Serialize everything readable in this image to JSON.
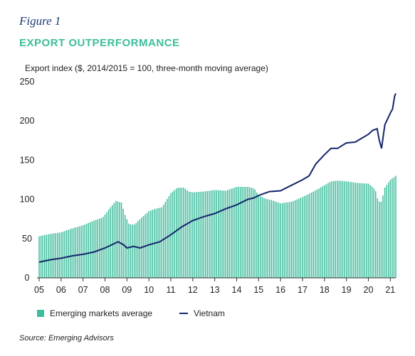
{
  "figure_label": "Figure 1",
  "title": "EXPORT OUTPERFORMANCE",
  "source": "Source: Emerging Advisors",
  "colors": {
    "bars": "#3dbd9c",
    "line": "#15266b",
    "title": "#3dbd9c",
    "figure_label": "#1e3a78"
  },
  "chart_data": {
    "type": "bar+line",
    "ylabel": "Export index ($, 2014/2015 = 100, three-month moving average)",
    "ylim": [
      0,
      250
    ],
    "yticks": [
      0,
      50,
      100,
      150,
      200,
      250
    ],
    "xlim": [
      2005,
      2021.25
    ],
    "xticks": [
      "05",
      "06",
      "07",
      "08",
      "09",
      "10",
      "11",
      "12",
      "13",
      "14",
      "15",
      "16",
      "17",
      "18",
      "19",
      "20",
      "21"
    ],
    "grid": false,
    "legend_position": "bottom",
    "series": [
      {
        "name": "Emerging markets average",
        "kind": "bar",
        "points": [
          [
            2005,
            53
          ],
          [
            2005.5,
            56
          ],
          [
            2006,
            58
          ],
          [
            2006.5,
            63
          ],
          [
            2007,
            67
          ],
          [
            2007.5,
            73
          ],
          [
            2007.9,
            77
          ],
          [
            2008.25,
            90
          ],
          [
            2008.5,
            98
          ],
          [
            2008.75,
            96
          ],
          [
            2008.92,
            80
          ],
          [
            2009.1,
            68
          ],
          [
            2009.35,
            68
          ],
          [
            2009.6,
            75
          ],
          [
            2010,
            85
          ],
          [
            2010.3,
            88
          ],
          [
            2010.6,
            90
          ],
          [
            2011,
            108
          ],
          [
            2011.3,
            115
          ],
          [
            2011.6,
            115
          ],
          [
            2011.8,
            110
          ],
          [
            2012,
            109
          ],
          [
            2012.5,
            110
          ],
          [
            2013,
            112
          ],
          [
            2013.5,
            111
          ],
          [
            2014,
            116
          ],
          [
            2014.5,
            116
          ],
          [
            2014.8,
            114
          ],
          [
            2015,
            105
          ],
          [
            2015.3,
            101
          ],
          [
            2015.6,
            99
          ],
          [
            2016,
            95
          ],
          [
            2016.5,
            97
          ],
          [
            2017,
            103
          ],
          [
            2017.5,
            110
          ],
          [
            2018,
            118
          ],
          [
            2018.3,
            123
          ],
          [
            2018.6,
            124
          ],
          [
            2019,
            123
          ],
          [
            2019.5,
            121
          ],
          [
            2020,
            120
          ],
          [
            2020.2,
            116
          ],
          [
            2020.35,
            110
          ],
          [
            2020.45,
            97
          ],
          [
            2020.6,
            97
          ],
          [
            2020.75,
            115
          ],
          [
            2021,
            125
          ],
          [
            2021.25,
            130
          ]
        ]
      },
      {
        "name": "Vietnam",
        "kind": "line",
        "points": [
          [
            2005,
            20
          ],
          [
            2005.5,
            23
          ],
          [
            2006,
            25
          ],
          [
            2006.5,
            28
          ],
          [
            2007,
            30
          ],
          [
            2007.5,
            33
          ],
          [
            2008,
            38
          ],
          [
            2008.3,
            42
          ],
          [
            2008.6,
            46
          ],
          [
            2008.85,
            42
          ],
          [
            2009,
            38
          ],
          [
            2009.3,
            40
          ],
          [
            2009.6,
            38
          ],
          [
            2010,
            42
          ],
          [
            2010.5,
            46
          ],
          [
            2011,
            55
          ],
          [
            2011.5,
            65
          ],
          [
            2012,
            73
          ],
          [
            2012.5,
            78
          ],
          [
            2013,
            82
          ],
          [
            2013.5,
            88
          ],
          [
            2014,
            93
          ],
          [
            2014.5,
            100
          ],
          [
            2014.8,
            102
          ],
          [
            2015,
            105
          ],
          [
            2015.5,
            110
          ],
          [
            2016,
            111
          ],
          [
            2016.5,
            118
          ],
          [
            2017,
            125
          ],
          [
            2017.3,
            130
          ],
          [
            2017.6,
            145
          ],
          [
            2018,
            157
          ],
          [
            2018.3,
            165
          ],
          [
            2018.6,
            165
          ],
          [
            2019,
            172
          ],
          [
            2019.4,
            173
          ],
          [
            2019.7,
            178
          ],
          [
            2020,
            183
          ],
          [
            2020.2,
            188
          ],
          [
            2020.4,
            190
          ],
          [
            2020.5,
            175
          ],
          [
            2020.6,
            165
          ],
          [
            2020.75,
            195
          ],
          [
            2021,
            210
          ],
          [
            2021.1,
            215
          ],
          [
            2021.2,
            232
          ],
          [
            2021.25,
            235
          ]
        ]
      }
    ]
  }
}
